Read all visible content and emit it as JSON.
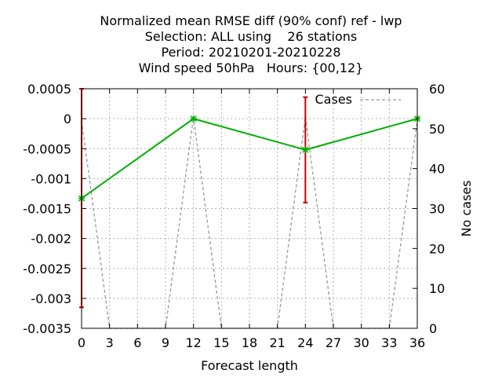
{
  "chart_data": {
    "type": "line",
    "title_lines": [
      "Normalized mean RMSE diff (90% conf) ref - lwp",
      "Selection: ALL using    26 stations",
      "Period: 20210201-20210228",
      "Wind speed 50hPa   Hours: {00,12}"
    ],
    "xlabel": "Forecast length",
    "ylabel": "",
    "y2label": "No cases",
    "xlim": [
      0,
      36
    ],
    "ylim": [
      -0.0035,
      0.0005
    ],
    "y2lim": [
      0,
      60
    ],
    "x_ticks": [
      0,
      3,
      6,
      9,
      12,
      15,
      18,
      21,
      24,
      27,
      30,
      33,
      36
    ],
    "y_ticks": [
      0.0005,
      0,
      -0.0005,
      -0.001,
      -0.0015,
      -0.002,
      -0.0025,
      -0.003,
      -0.0035
    ],
    "y_tick_labels": [
      "0.0005",
      "0",
      "-0.0005",
      "-0.001",
      "-0.0015",
      "-0.002",
      "-0.0025",
      "-0.003",
      "-0.0035"
    ],
    "y2_ticks": [
      0,
      10,
      20,
      30,
      40,
      50,
      60
    ],
    "grid": true,
    "series": [
      {
        "color": "#00b000",
        "x": [
          0,
          12,
          24,
          36
        ],
        "y": [
          -0.00133,
          0.0,
          -0.00052,
          0.0
        ]
      }
    ],
    "error_bars": {
      "color": "#cc0000",
      "x": [
        0,
        12,
        24,
        36
      ],
      "low": [
        -0.00315,
        0.0,
        -0.0014,
        0.0
      ],
      "high": [
        0.0005,
        0.0,
        0.00036,
        0.0
      ]
    },
    "cases": {
      "name": "Cases",
      "axis": "y2",
      "color": "#999999",
      "x": [
        0,
        3,
        9,
        12,
        15,
        21,
        24,
        27,
        33,
        36
      ],
      "y": [
        52,
        0,
        0,
        53,
        0,
        0,
        53,
        0,
        0,
        52
      ]
    },
    "legend_position": "top-right"
  }
}
